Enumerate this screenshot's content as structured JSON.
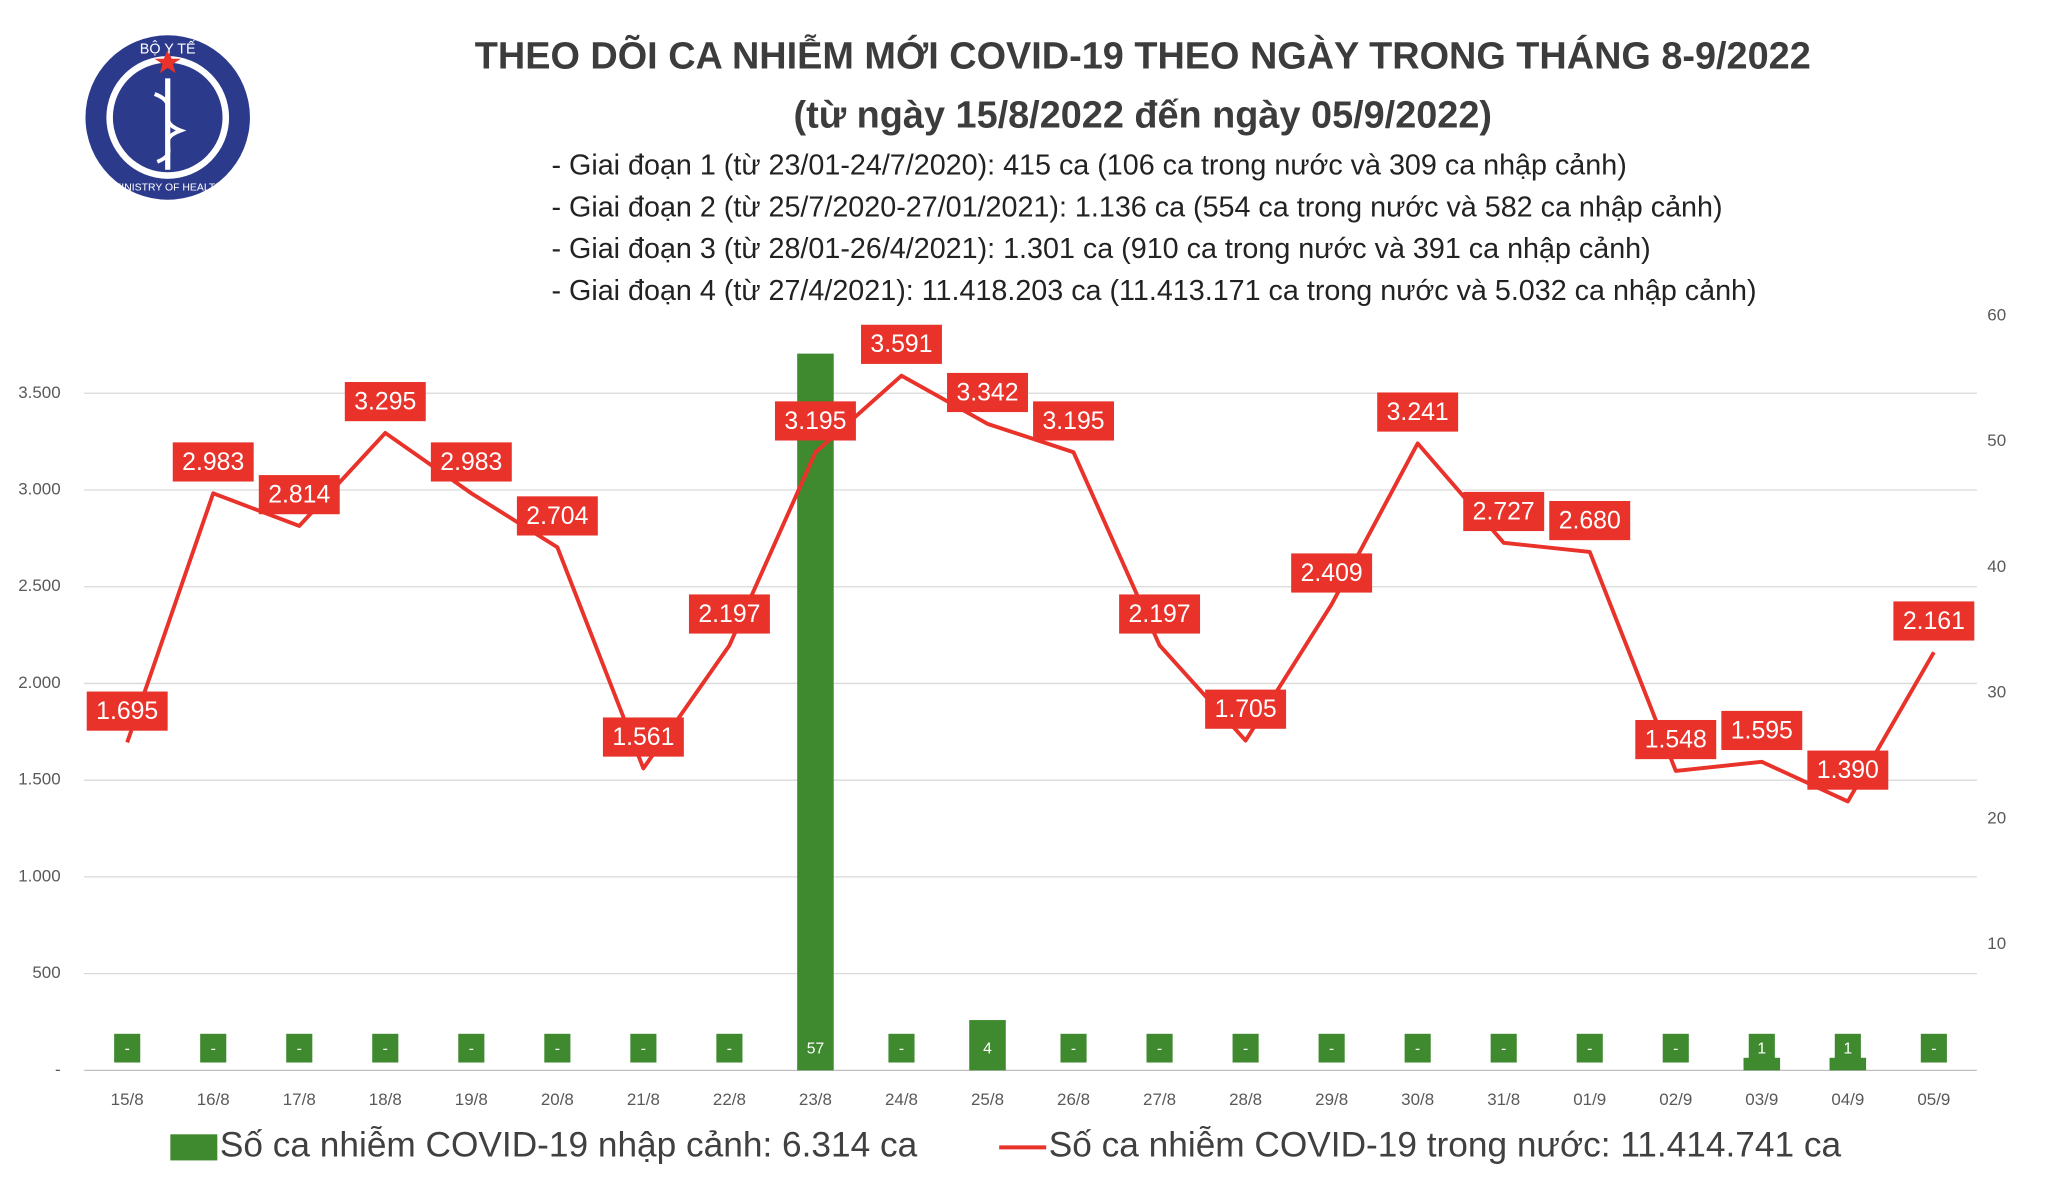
{
  "logo": {
    "top": "BỘ Y TẾ",
    "bottom": "MINISTRY OF HEALTH"
  },
  "chart_data": {
    "type": "bar-line",
    "title": "THEO DÕI CA NHIỄM MỚI COVID-19 THEO NGÀY TRONG THÁNG 8-9/2022",
    "subtitle": "(từ ngày 15/8/2022 đến ngày 05/9/2022)",
    "annotations": [
      "- Giai đoạn 1 (từ 23/01-24/7/2020): 415 ca (106 ca trong nước và 309 ca nhập cảnh)",
      "- Giai đoạn 2 (từ 25/7/2020-27/01/2021): 1.136 ca (554 ca trong nước và 582 ca nhập cảnh)",
      "- Giai đoạn 3 (từ 28/01-26/4/2021): 1.301 ca (910 ca trong nước và 391 ca nhập cảnh)",
      "- Giai đoạn 4 (từ 27/4/2021): 11.418.203 ca (11.413.171 ca trong nước và 5.032 ca nhập cảnh)"
    ],
    "categories": [
      "15/8",
      "16/8",
      "17/8",
      "18/8",
      "19/8",
      "20/8",
      "21/8",
      "22/8",
      "23/8",
      "24/8",
      "25/8",
      "26/8",
      "27/8",
      "28/8",
      "29/8",
      "30/8",
      "31/8",
      "01/9",
      "02/9",
      "03/9",
      "04/9",
      "05/9"
    ],
    "series": [
      {
        "name": "Số ca nhiễm COVID-19 nhập cảnh: 6.314 ca",
        "type": "bar",
        "axis": "y2",
        "color": "#3f8a2f",
        "values": [
          0,
          0,
          0,
          0,
          0,
          0,
          0,
          0,
          57,
          0,
          4,
          0,
          0,
          0,
          0,
          0,
          0,
          0,
          0,
          1,
          1,
          0
        ],
        "value_labels": [
          "-",
          "-",
          "-",
          "-",
          "-",
          "-",
          "-",
          "-",
          "57",
          "-",
          "4",
          "-",
          "-",
          "-",
          "-",
          "-",
          "-",
          "-",
          "-",
          "1",
          "1",
          "-"
        ]
      },
      {
        "name": "Số ca nhiễm COVID-19 trong nước: 11.414.741 ca",
        "type": "line",
        "color": "#e8322a",
        "values": [
          1695,
          2983,
          2814,
          3295,
          2983,
          2704,
          1561,
          2197,
          3195,
          3591,
          3342,
          3195,
          2197,
          1705,
          2409,
          3241,
          2727,
          2680,
          1548,
          1595,
          1390,
          2161
        ],
        "value_labels": [
          "1.695",
          "2.983",
          "2.814",
          "3.295",
          "2.983",
          "2.704",
          "1.561",
          "2.197",
          "3.195",
          "3.591",
          "3.342",
          "3.195",
          "2.197",
          "1.705",
          "2.409",
          "3.241",
          "2.727",
          "2.680",
          "1.548",
          "1.595",
          "1.390",
          "2.161"
        ]
      }
    ],
    "ylim": [
      0,
      3900
    ],
    "yticks": [
      {
        "value": 0,
        "label": "-"
      },
      500,
      {
        "value": 1000,
        "label": "1.000"
      },
      {
        "value": 1500,
        "label": "1.500"
      },
      {
        "value": 2000,
        "label": "2.000"
      },
      {
        "value": 2500,
        "label": "2.500"
      },
      {
        "value": 3000,
        "label": "3.000"
      },
      {
        "value": 3500,
        "label": "3.500"
      }
    ],
    "y2lim": [
      0,
      60
    ],
    "y2ticks": [
      10,
      20,
      30,
      40,
      50,
      60
    ],
    "grid": true
  }
}
